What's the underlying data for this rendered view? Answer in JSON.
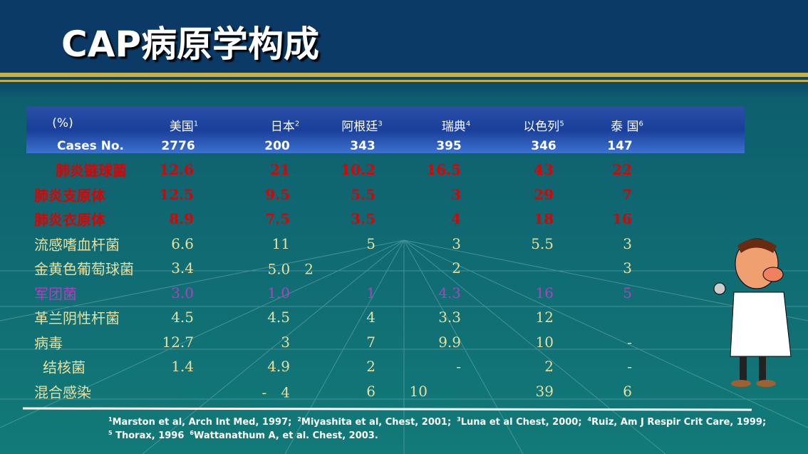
{
  "title": "CAP病原学构成",
  "table": {
    "header": [
      {
        "text": "(%)"
      },
      {
        "text": "美国",
        "sup": "1"
      },
      {
        "text": "日本",
        "sup": "2"
      },
      {
        "text": "阿根廷",
        "sup": "3"
      },
      {
        "text": "瑞典",
        "sup": "4"
      },
      {
        "text": "以色列",
        "sup": "5"
      },
      {
        "text": "泰 国",
        "sup": "6"
      }
    ],
    "cases": [
      "Cases No.",
      "2776",
      "200",
      "343",
      "395",
      "346",
      "147"
    ],
    "rows": [
      [
        "肺炎链球菌",
        "12.6",
        "21",
        "10.2",
        "16.5",
        "43",
        "22"
      ],
      [
        "肺炎支原体",
        "12.5",
        "9.5",
        "5.5",
        "3",
        "29",
        "7"
      ],
      [
        "肺炎衣原体",
        "8.9",
        "7.5",
        "3.5",
        "4",
        "18",
        "16"
      ],
      [
        "流感嗜血杆菌",
        "6.6",
        "11",
        "5",
        "3",
        "5.5",
        "3"
      ],
      [
        "金黄色葡萄球菌",
        "3.4",
        "5.0　2",
        "",
        "2",
        "",
        "3"
      ],
      [
        "军团菌",
        "3.0",
        "1.0",
        "1",
        "4.3",
        "16",
        "5"
      ],
      [
        "革兰阴性杆菌",
        "4.5",
        "4.5",
        "4",
        "3.3",
        "12",
        ""
      ],
      [
        "病毒",
        "12.7",
        "3",
        "7",
        "9.9",
        "10",
        "-"
      ],
      [
        "结核菌",
        "1.4",
        "4.9",
        "2",
        "-",
        "2",
        "-"
      ],
      [
        "混合感染",
        "",
        "-　4",
        "6",
        "10",
        "39",
        "6"
      ]
    ]
  },
  "footnotes": [
    [
      {
        "sup": "1",
        "text": "Marston et al, Arch Int Med, 1997;"
      },
      {
        "sup": "2",
        "text": "Miyashita et al, Chest, 2001;"
      },
      {
        "sup": "3",
        "text": "Luna et al Chest, 2000;"
      },
      {
        "sup": "4",
        "text": "Ruiz, Am J Respir Crit Care, 1999;"
      }
    ],
    [
      {
        "sup": "5",
        "text": " Thorax, 1996"
      },
      {
        "sup": "6",
        "text": "Wattanathum A, et al. Chest,  2003."
      }
    ]
  ]
}
